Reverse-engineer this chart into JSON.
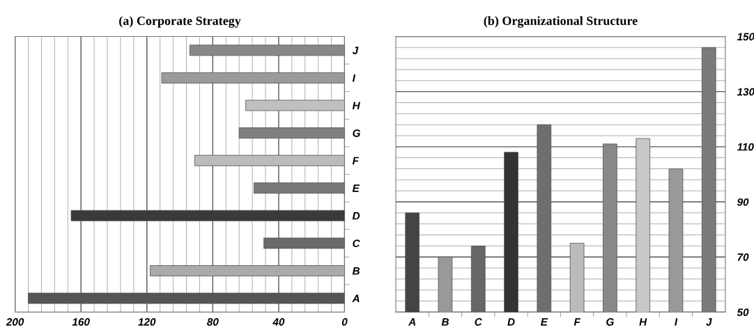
{
  "chart_data": [
    {
      "type": "bar",
      "orientation": "horizontal",
      "title": "(a) Corporate Strategy",
      "categories": [
        "J",
        "I",
        "H",
        "G",
        "F",
        "E",
        "D",
        "C",
        "B",
        "A"
      ],
      "values": [
        94,
        111,
        60,
        64,
        91,
        55,
        166,
        49,
        118,
        192
      ],
      "colors": [
        "#888888",
        "#9a9a9a",
        "#c0c0c0",
        "#808080",
        "#bbbbbb",
        "#777777",
        "#3a3a3a",
        "#6a6a6a",
        "#aaaaaa",
        "#555555"
      ],
      "xlim": [
        200,
        0
      ],
      "xticks": [
        200,
        {
          "value": 192,
          "label": null
        },
        {
          "value": 184,
          "label": null
        },
        {
          "value": 176,
          "label": null
        },
        {
          "value": 168,
          "label": null
        },
        160,
        {
          "value": 152,
          "label": null
        },
        {
          "value": 144,
          "label": null
        },
        {
          "value": 136,
          "label": null
        },
        {
          "value": 128,
          "label": null
        },
        120,
        {
          "value": 112,
          "label": null
        },
        {
          "value": 104,
          "label": null
        },
        {
          "value": 96,
          "label": null
        },
        {
          "value": 88,
          "label": null
        },
        80,
        {
          "value": 72,
          "label": null
        },
        {
          "value": 64,
          "label": null
        },
        {
          "value": 56,
          "label": null
        },
        {
          "value": 48,
          "label": null
        },
        40,
        {
          "value": 32,
          "label": null
        },
        {
          "value": 24,
          "label": null
        },
        {
          "value": 16,
          "label": null
        },
        {
          "value": 8,
          "label": null
        },
        0
      ],
      "grid": "x"
    },
    {
      "type": "bar",
      "title": "(b) Organizational Structure",
      "categories": [
        "A",
        "B",
        "C",
        "D",
        "E",
        "F",
        "G",
        "H",
        "I",
        "J"
      ],
      "values": [
        86,
        70,
        74,
        108,
        118,
        75,
        111,
        113,
        102,
        146
      ],
      "colors": [
        "#444444",
        "#999999",
        "#666666",
        "#333333",
        "#6e6e6e",
        "#bbbbbb",
        "#888888",
        "#c8c8c8",
        "#999999",
        "#7a7a7a"
      ],
      "ylim": [
        50,
        150
      ],
      "yticks": [
        50,
        {
          "value": 54,
          "label": null
        },
        {
          "value": 58,
          "label": null
        },
        {
          "value": 62,
          "label": null
        },
        {
          "value": 66,
          "label": null
        },
        70,
        {
          "value": 74,
          "label": null
        },
        {
          "value": 78,
          "label": null
        },
        {
          "value": 82,
          "label": null
        },
        {
          "value": 86,
          "label": null
        },
        90,
        {
          "value": 94,
          "label": null
        },
        {
          "value": 98,
          "label": null
        },
        {
          "value": 102,
          "label": null
        },
        {
          "value": 106,
          "label": null
        },
        110,
        {
          "value": 114,
          "label": null
        },
        {
          "value": 118,
          "label": null
        },
        {
          "value": 122,
          "label": null
        },
        {
          "value": 126,
          "label": null
        },
        130,
        {
          "value": 134,
          "label": null
        },
        {
          "value": 138,
          "label": null
        },
        {
          "value": 142,
          "label": null
        },
        {
          "value": 146,
          "label": null
        },
        150
      ],
      "grid": "y"
    }
  ]
}
